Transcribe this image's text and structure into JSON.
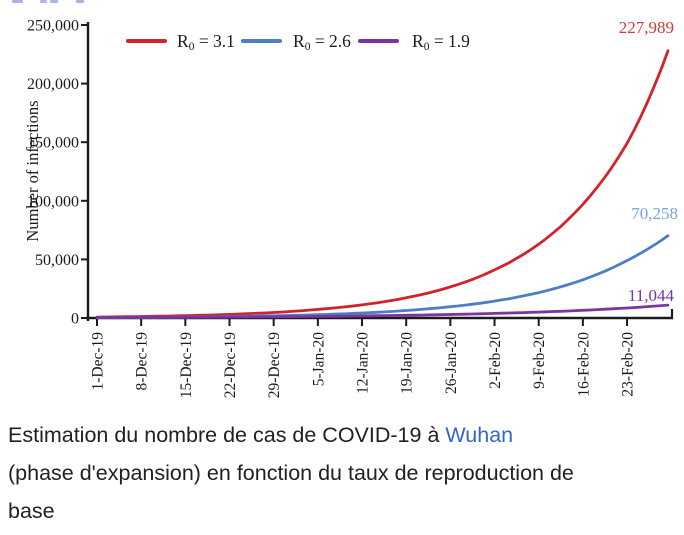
{
  "colors": {
    "background": "#ffffff",
    "axis": "#1b1b1b",
    "caption_text": "#202122",
    "link": "#3366cc",
    "series_red": "#d2232a",
    "series_blue": "#4d7ec3",
    "series_purple": "#7a35a0"
  },
  "legend": [
    {
      "base": "R",
      "sub": "0",
      "rest": " = 3.1"
    },
    {
      "base": "R",
      "sub": "0",
      "rest": " = 2.6"
    },
    {
      "base": "R",
      "sub": "0",
      "rest": " = 1.9"
    }
  ],
  "chart_data": {
    "type": "line",
    "title": "",
    "xlabel": "",
    "ylabel": "Number of infections",
    "ylim": [
      0,
      250000
    ],
    "grid": false,
    "legend_position": "top-left-inside",
    "y_tick_labels": [
      "0",
      "50,000",
      "100,000",
      "150,000",
      "200,000",
      "250,000"
    ],
    "categories": [
      "1-Dec-19",
      "8-Dec-19",
      "15-Dec-19",
      "22-Dec-19",
      "29-Dec-19",
      "5-Jan-20",
      "12-Jan-20",
      "19-Jan-20",
      "26-Jan-20",
      "2-Feb-20",
      "9-Feb-20",
      "16-Feb-20",
      "23-Feb-20"
    ],
    "x_axis_note": "axis and curves extend about one week past the last labeled tick; final values are annotated at the curve ends",
    "series": [
      {
        "name": "R0 = 3.1",
        "color": "#d2232a",
        "label_color": "#cb3d3c",
        "weekly_values": [
          800,
          1300,
          2000,
          3100,
          4700,
          7300,
          11200,
          17200,
          26500,
          41000,
          63000,
          97000,
          149000
        ],
        "end_value": 227989,
        "end_label": "227,989"
      },
      {
        "name": "R0 = 2.6",
        "color": "#4d7ec3",
        "label_color": "#77a4db",
        "weekly_values": [
          370,
          550,
          830,
          1250,
          1880,
          2830,
          4250,
          6390,
          9600,
          14400,
          21700,
          32600,
          49000
        ],
        "end_value": 70258,
        "end_label": "70,258"
      },
      {
        "name": "R0 = 1.9",
        "color": "#7a35a0",
        "label_color": "#7434a4",
        "weekly_values": [
          370,
          480,
          620,
          810,
          1050,
          1370,
          1770,
          2300,
          3000,
          3900,
          5050,
          6560,
          8520
        ],
        "end_value": 11044,
        "end_label": "11,044"
      }
    ]
  },
  "caption": {
    "line1_before_link": "Estimation du nombre de cas de COVID-19 à ",
    "line1_link": "Wuhan",
    "line2": "(phase d'expansion) en fonction du taux de reproduction de",
    "line3": "base"
  }
}
